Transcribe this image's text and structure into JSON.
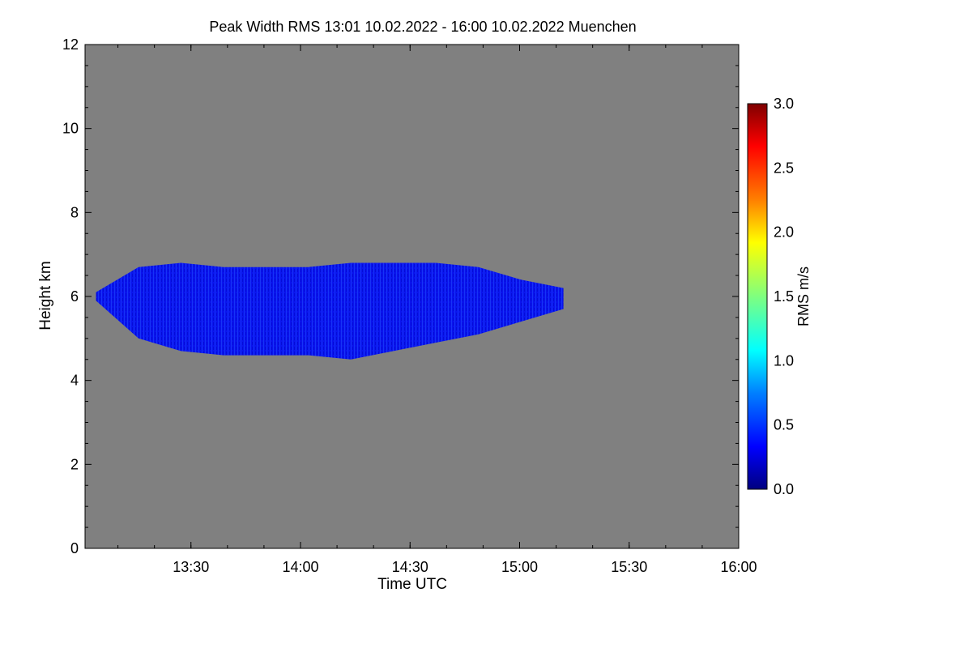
{
  "chart_data": {
    "type": "heatmap",
    "title": "Peak Width RMS   13:01 10.02.2022 - 16:00 10.02.2022 Muenchen",
    "xlabel": "Time UTC",
    "ylabel": "Height km",
    "x_range": [
      "13:01",
      "16:00"
    ],
    "x_ticks": [
      {
        "t": "13:30"
      },
      {
        "t": "14:00"
      },
      {
        "t": "14:30"
      },
      {
        "t": "15:00"
      },
      {
        "t": "15:30"
      },
      {
        "t": "16:00"
      }
    ],
    "ylim": [
      0,
      12
    ],
    "y_ticks": [
      "0",
      "2",
      "4",
      "6",
      "8",
      "10",
      "12"
    ],
    "background_color": "#808080",
    "colorbar": {
      "label": "RMS m/s",
      "range": [
        0.0,
        3.0
      ],
      "ticks": [
        "0.0",
        "0.5",
        "1.0",
        "1.5",
        "2.0",
        "2.5",
        "3.0"
      ],
      "colors": [
        "#00007f",
        "#0000ff",
        "#00bfff",
        "#00ffff",
        "#7fff7f",
        "#ffff00",
        "#ff7f00",
        "#ff0000",
        "#7f0000"
      ]
    },
    "echo_region": {
      "time_start": "13:04",
      "time_end": "15:12",
      "base_km": [
        5.9,
        5.0,
        4.7,
        4.6,
        4.6,
        4.6,
        4.5,
        4.7,
        4.9,
        5.1,
        5.4,
        5.7
      ],
      "top_km": [
        6.1,
        6.7,
        6.8,
        6.7,
        6.7,
        6.7,
        6.8,
        6.8,
        6.8,
        6.7,
        6.4,
        6.2
      ],
      "value_m_s": [
        0.2,
        0.5
      ]
    }
  }
}
